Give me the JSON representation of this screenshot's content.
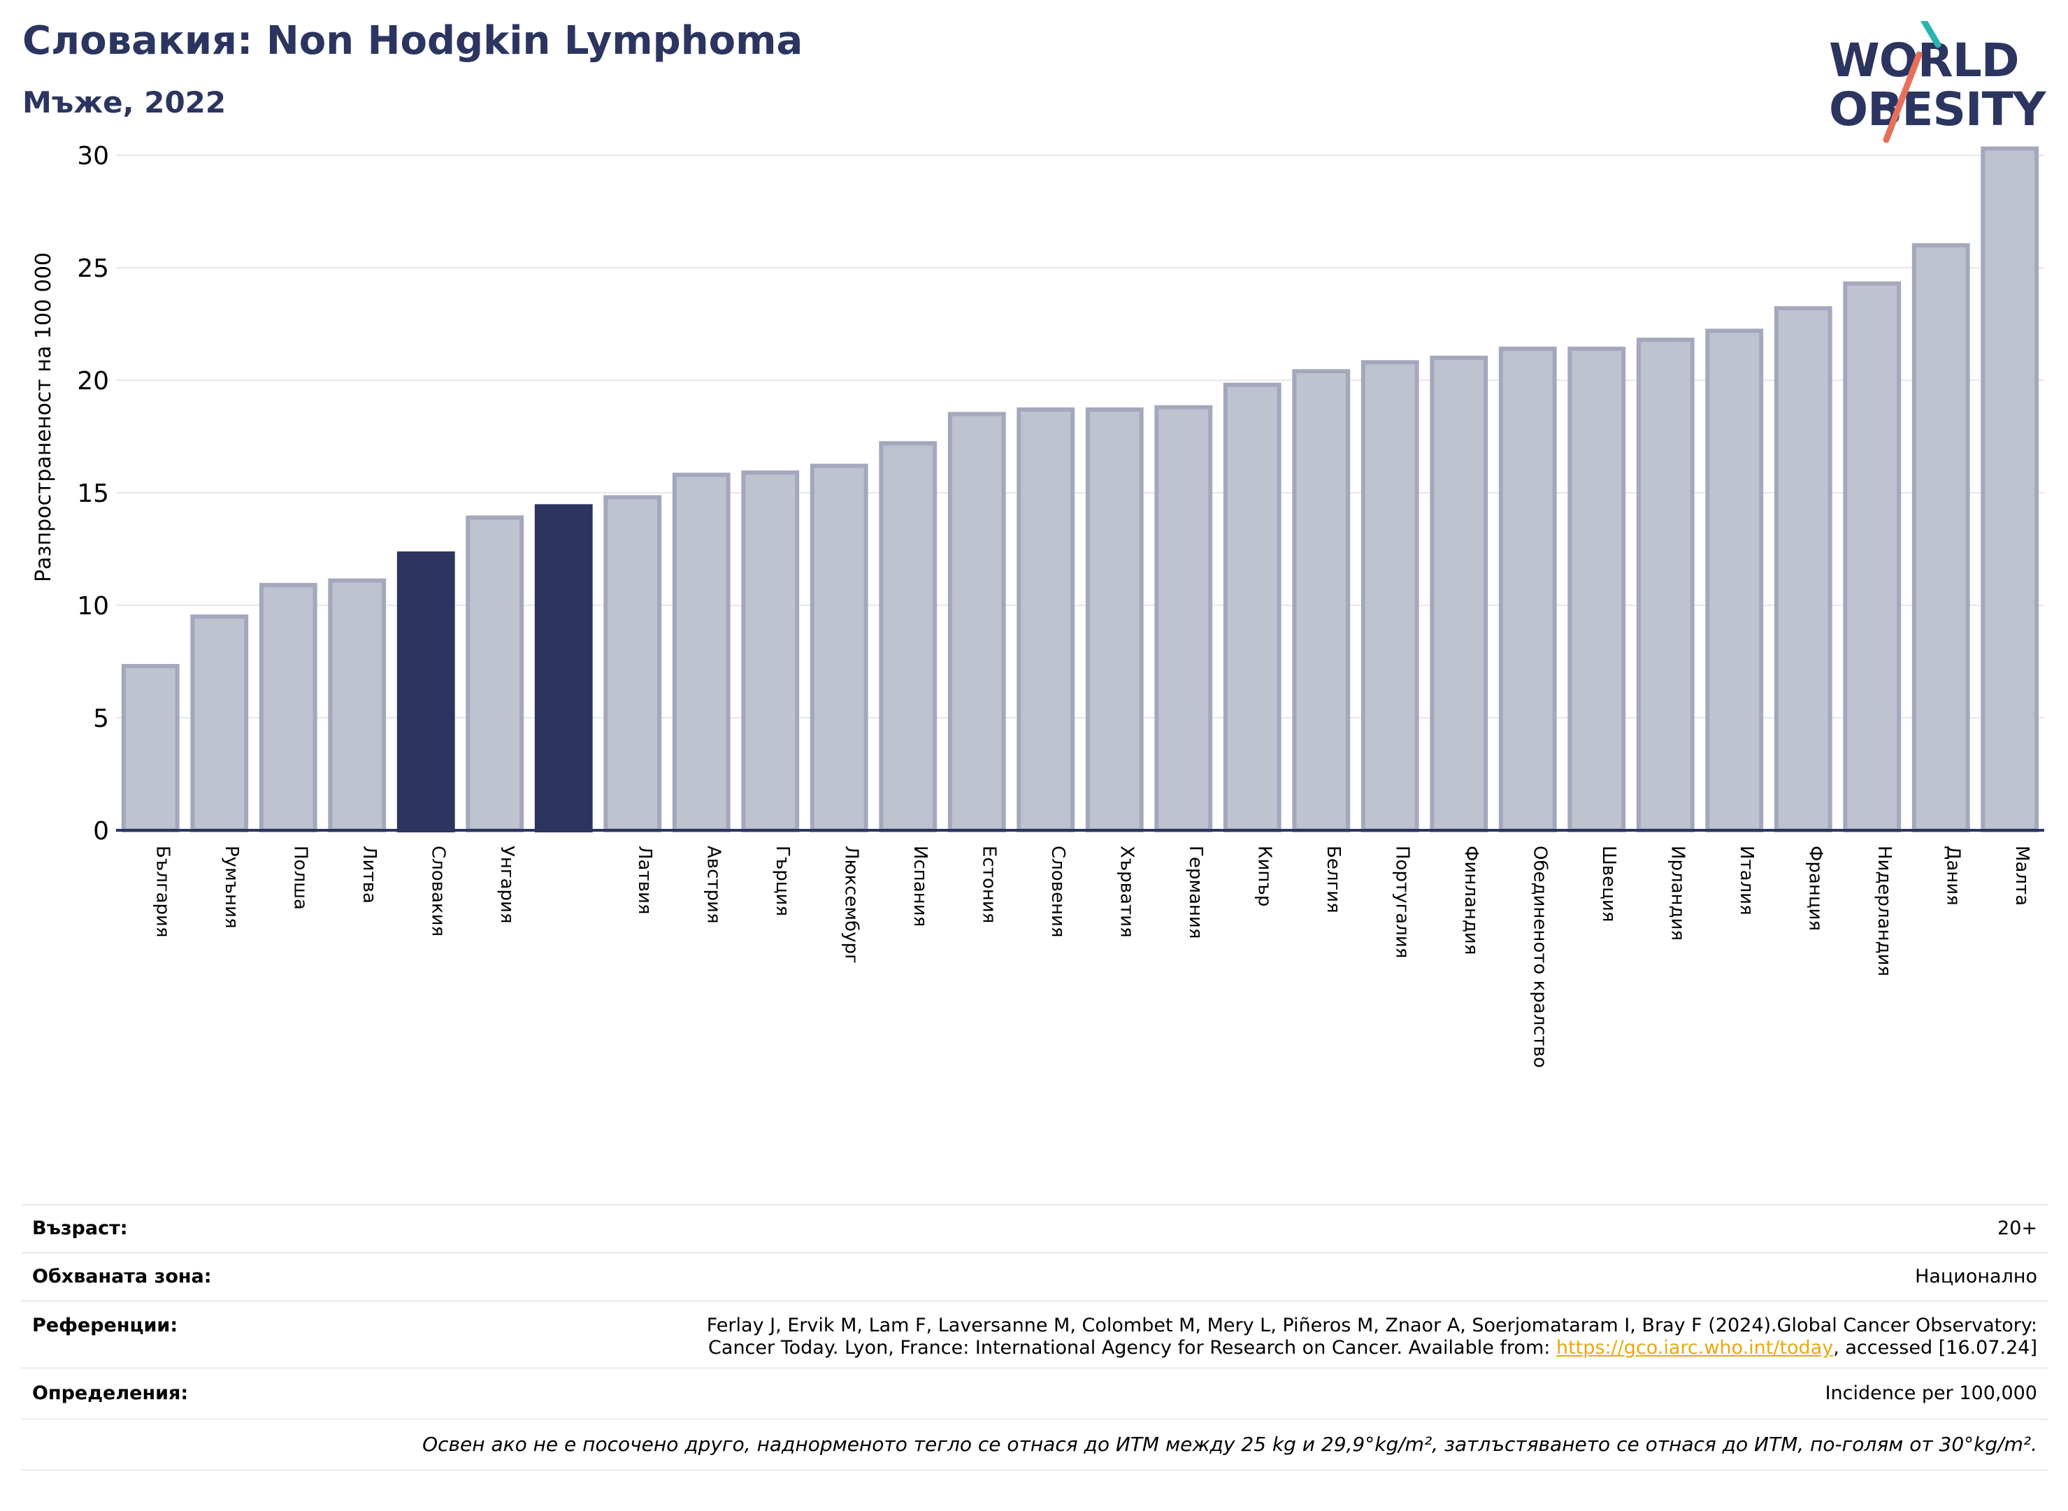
{
  "header": {
    "title": "Словакия: Non Hodgkin Lymphoma",
    "subtitle": "Мъже, 2022"
  },
  "logo": {
    "line1": "WORLD",
    "line2": "OBESITY"
  },
  "colors": {
    "bar": "#bfc2cf",
    "bar_border": "#a3a8bd",
    "highlight": "#2b3560",
    "grid": "#e6e7ec",
    "axis": "#2b3560"
  },
  "chart_data": {
    "type": "bar",
    "ylabel": "Разпространеност  на 100 000",
    "ylim": [
      0,
      31
    ],
    "yticks": [
      0,
      5,
      10,
      15,
      20,
      25,
      30
    ],
    "grid": true,
    "categories": [
      "България",
      "Румъния",
      "Полша",
      "Литва",
      "Словакия",
      "Унгария",
      "",
      "Латвия",
      "Австрия",
      "Гърция",
      "Люксембург",
      "Испания",
      "Естония",
      "Словения",
      "Хърватия",
      "Германия",
      "Кипър",
      "Белгия",
      "Португалия",
      "Финландия",
      "Обединеното кралство",
      "Швеция",
      "Ирландия",
      "Италия",
      "Франция",
      "Нидерландия",
      "Дания",
      "Малта"
    ],
    "values": [
      7.3,
      9.5,
      10.9,
      11.1,
      12.3,
      13.9,
      14.4,
      14.8,
      15.8,
      15.9,
      16.2,
      17.2,
      18.5,
      18.7,
      18.7,
      18.8,
      19.8,
      20.4,
      20.8,
      21.0,
      21.4,
      21.4,
      21.8,
      22.2,
      23.2,
      24.3,
      26.0,
      30.3
    ],
    "highlight": [
      4,
      6
    ]
  },
  "info": {
    "age_label": "Възраст:",
    "age_value": "20+",
    "area_label": "Обхваната зона:",
    "area_value": "Национално",
    "refs_label": "Референции:",
    "refs_line1": "Ferlay J, Ervik M, Lam F, Laversanne M, Colombet M, Mery L, Piñeros M, Znaor A, Soerjomataram I, Bray F (2024).Global Cancer Observatory:",
    "refs_line2_pre": "Cancer Today. Lyon, France: International Agency for Research on Cancer. Available from: ",
    "refs_link": "https://gco.iarc.who.int/today",
    "refs_line2_post": ", accessed [16.07.24]",
    "defs_label": "Определения:",
    "defs_value": "Incidence per 100,000",
    "note": "Освен ако не е посочено друго, наднорменото тегло се отнася до ИТМ между 25 kg и 29,9°kg/m², затлъстяването се отнася до ИТМ, по-голям от 30°kg/m²."
  }
}
